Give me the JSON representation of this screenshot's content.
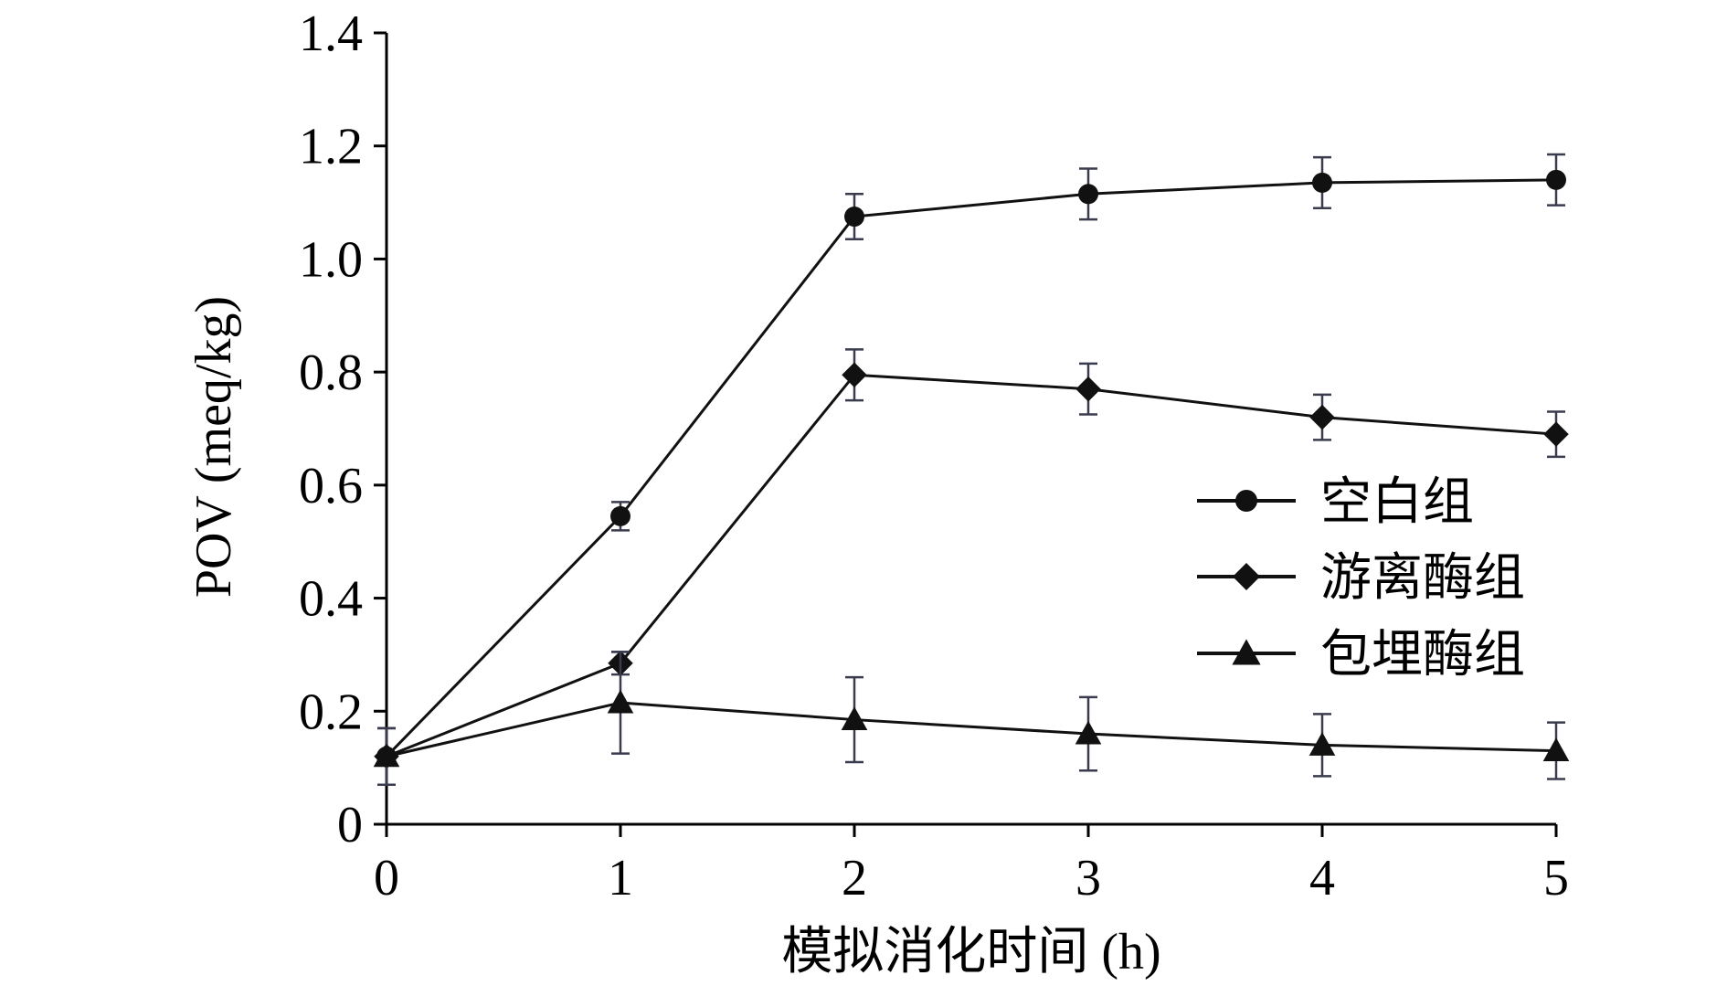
{
  "chart_data": {
    "type": "line",
    "xlabel": "模拟消化时间 (h)",
    "ylabel": "POV (meq/kg)",
    "x": [
      0,
      1,
      2,
      3,
      4,
      5
    ],
    "x_ticks": [
      "0",
      "1",
      "2",
      "3",
      "4",
      "5"
    ],
    "xlim": [
      0,
      5
    ],
    "y_ticks": [
      "0",
      "0.2",
      "0.4",
      "0.6",
      "0.8",
      "1.0",
      "1.2",
      "1.4"
    ],
    "ylim": [
      0,
      1.4
    ],
    "grid": false,
    "legend_position": "right",
    "series": [
      {
        "name": "空白组",
        "marker": "circle",
        "color": "#111111",
        "values": [
          0.12,
          0.545,
          1.075,
          1.115,
          1.135,
          1.14
        ],
        "errors": [
          0.05,
          0.025,
          0.04,
          0.045,
          0.045,
          0.045
        ]
      },
      {
        "name": "游离酶组",
        "marker": "diamond",
        "color": "#111111",
        "values": [
          0.12,
          0.285,
          0.795,
          0.77,
          0.72,
          0.69
        ],
        "errors": [
          0.05,
          0.02,
          0.045,
          0.045,
          0.04,
          0.04
        ]
      },
      {
        "name": "包埋酶组",
        "marker": "triangle",
        "color": "#111111",
        "values": [
          0.12,
          0.215,
          0.185,
          0.16,
          0.14,
          0.13
        ],
        "errors": [
          0.05,
          0.09,
          0.075,
          0.065,
          0.055,
          0.05
        ]
      }
    ]
  }
}
